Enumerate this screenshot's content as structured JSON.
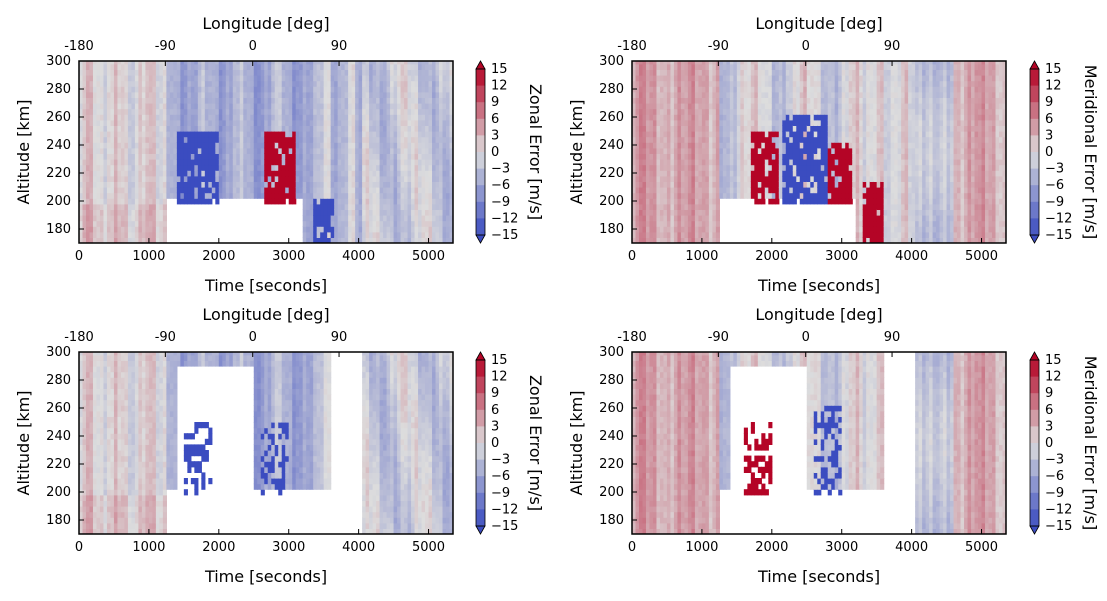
{
  "palette": {
    "negative": "#3b4cc0",
    "neutral": "#dddddd",
    "positive": "#b40426"
  },
  "shared_axes": {
    "xlabel": "Time [seconds]",
    "top_xlabel": "Longitude [deg]",
    "ylabel": "Altitude [km]",
    "x_ticks": [
      "0",
      "1000",
      "2000",
      "3000",
      "4000",
      "5000"
    ],
    "top_ticks": [
      "-180",
      "-90",
      "0",
      "90"
    ],
    "y_ticks": [
      "180",
      "200",
      "220",
      "240",
      "260",
      "280",
      "300"
    ],
    "colorbar_ticks": [
      "15",
      "12",
      "9",
      "6",
      "3",
      "0",
      "−3",
      "−6",
      "−9",
      "−12",
      "−15"
    ]
  },
  "chart_data": [
    {
      "type": "heatmap",
      "panel": "top-left",
      "xlabel": "Time [seconds]",
      "top_xlabel": "Longitude [deg]",
      "ylabel": "Altitude [km]",
      "colorbar_label": "Zonal Error [m/s]",
      "xlim": [
        0,
        5350
      ],
      "ylim": [
        170,
        300
      ],
      "top_axis_ticks": [
        -180,
        -90,
        0,
        90
      ],
      "clim": [
        -15,
        15
      ],
      "colormap": "coolwarm",
      "masked_regions": [
        {
          "x": [
            1230,
            3200
          ],
          "y": [
            170,
            200
          ]
        }
      ],
      "features": [
        {
          "x": [
            1400,
            2000
          ],
          "y": [
            200,
            250
          ],
          "value": -15
        },
        {
          "x": [
            2650,
            3100
          ],
          "y": [
            200,
            250
          ],
          "value": 15
        },
        {
          "x": [
            3350,
            3650
          ],
          "y": [
            170,
            200
          ],
          "value": -15
        }
      ]
    },
    {
      "type": "heatmap",
      "panel": "top-right",
      "xlabel": "Time [seconds]",
      "top_xlabel": "Longitude [deg]",
      "ylabel": "Altitude [km]",
      "colorbar_label": "Meridional Error [m/s]",
      "xlim": [
        0,
        5350
      ],
      "ylim": [
        170,
        300
      ],
      "top_axis_ticks": [
        -180,
        -90,
        0,
        90
      ],
      "clim": [
        -15,
        15
      ],
      "colormap": "coolwarm",
      "masked_regions": [
        {
          "x": [
            1230,
            3200
          ],
          "y": [
            170,
            200
          ]
        }
      ],
      "features": [
        {
          "x": [
            1700,
            2100
          ],
          "y": [
            200,
            250
          ],
          "value": 15
        },
        {
          "x": [
            2150,
            2800
          ],
          "y": [
            200,
            260
          ],
          "value": -15
        },
        {
          "x": [
            2800,
            3150
          ],
          "y": [
            200,
            240
          ],
          "value": 15
        },
        {
          "x": [
            3300,
            3600
          ],
          "y": [
            170,
            215
          ],
          "value": 15
        }
      ]
    },
    {
      "type": "heatmap",
      "panel": "bottom-left",
      "xlabel": "Time [seconds]",
      "top_xlabel": "Longitude [deg]",
      "ylabel": "Altitude [km]",
      "colorbar_label": "Zonal Error [m/s]",
      "xlim": [
        0,
        5350
      ],
      "ylim": [
        170,
        300
      ],
      "top_axis_ticks": [
        -180,
        -90,
        0,
        90
      ],
      "clim": [
        -15,
        15
      ],
      "colormap": "coolwarm",
      "masked_regions": [
        {
          "x": [
            1230,
            4050
          ],
          "y": [
            170,
            200
          ]
        },
        {
          "x": [
            1400,
            2500
          ],
          "y": [
            200,
            290
          ]
        },
        {
          "x": [
            3600,
            4050
          ],
          "y": [
            200,
            300
          ]
        }
      ],
      "features": [
        {
          "x": [
            1500,
            1900
          ],
          "y": [
            200,
            250
          ],
          "value": -15,
          "sparse": true
        },
        {
          "x": [
            2600,
            3000
          ],
          "y": [
            200,
            250
          ],
          "value": -15,
          "sparse": true
        }
      ]
    },
    {
      "type": "heatmap",
      "panel": "bottom-right",
      "xlabel": "Time [seconds]",
      "top_xlabel": "Longitude [deg]",
      "ylabel": "Altitude [km]",
      "colorbar_label": "Meridional Error [m/s]",
      "xlim": [
        0,
        5350
      ],
      "ylim": [
        170,
        300
      ],
      "top_axis_ticks": [
        -180,
        -90,
        0,
        90
      ],
      "clim": [
        -15,
        15
      ],
      "colormap": "coolwarm",
      "masked_regions": [
        {
          "x": [
            1230,
            4050
          ],
          "y": [
            170,
            200
          ]
        },
        {
          "x": [
            1400,
            2500
          ],
          "y": [
            200,
            290
          ]
        },
        {
          "x": [
            3600,
            4050
          ],
          "y": [
            200,
            300
          ]
        }
      ],
      "features": [
        {
          "x": [
            1600,
            2000
          ],
          "y": [
            200,
            250
          ],
          "value": 15,
          "sparse": true
        },
        {
          "x": [
            2600,
            3000
          ],
          "y": [
            200,
            260
          ],
          "value": -15,
          "sparse": true
        }
      ]
    }
  ]
}
